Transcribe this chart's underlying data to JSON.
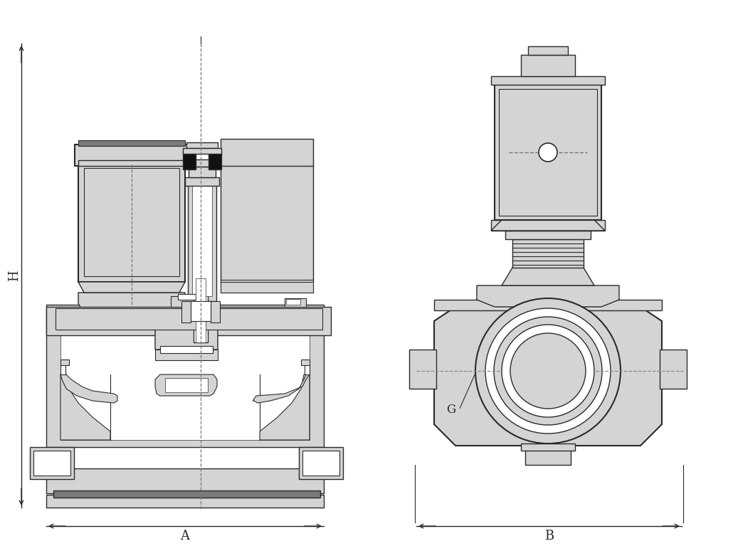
{
  "bg_color": "#ffffff",
  "line_color": "#2a2a2a",
  "fill_color": "#d4d4d4",
  "fill_med": "#c0c0c0",
  "dark_fill": "#7a7a7a",
  "white_fill": "#ffffff",
  "black_fill": "#111111",
  "label_A": "A",
  "label_B": "B",
  "label_H": "H",
  "label_G": "G",
  "figsize": [
    10.3,
    7.81
  ],
  "dpi": 100
}
